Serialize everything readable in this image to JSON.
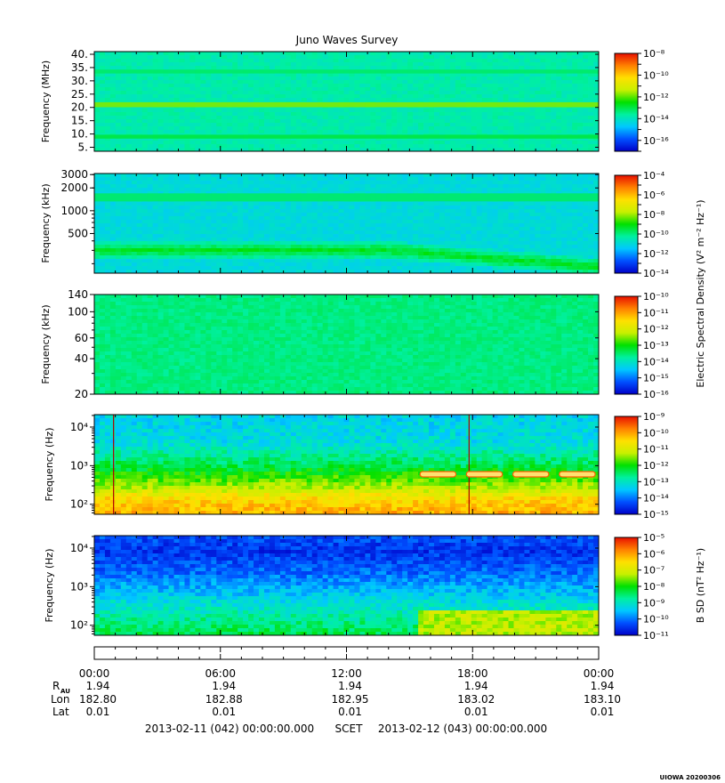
{
  "figure": {
    "title": "Juno Waves Survey",
    "watermark": "UIOWA 20200306"
  },
  "colors": {
    "colormap": [
      "#0000c8",
      "#0050ff",
      "#00c8ff",
      "#00f0a0",
      "#00e000",
      "#c8f000",
      "#ffe000",
      "#ff8000",
      "#e81000"
    ],
    "frame": "#000000"
  },
  "chart_data": [
    {
      "type": "heatmap",
      "name": "panel-1",
      "ylabel": "Frequency (MHz)",
      "yscale": "linear",
      "yticks": [
        "40.",
        "35.",
        "30.",
        "25.",
        "20.",
        "15.",
        "10.",
        "5."
      ],
      "ytick_values": [
        40,
        35,
        30,
        25,
        20,
        15,
        10,
        5
      ],
      "ylim": [
        3.5,
        41
      ],
      "colorbar": {
        "scale": "log",
        "range": [
          -17,
          -8
        ],
        "ticks": [
          -8,
          -10,
          -12,
          -14,
          -16
        ],
        "label": ""
      },
      "base_level": 0.36,
      "bands": [
        {
          "at": 21,
          "level": 0.58,
          "width": 0.6
        },
        {
          "at": 9,
          "level": 0.45,
          "width": 0.4
        },
        {
          "at": 33.5,
          "level": 0.42,
          "width": 0.4
        }
      ]
    },
    {
      "type": "heatmap",
      "name": "panel-2",
      "ylabel": "Frequency (kHz)",
      "yscale": "log",
      "yticks": [
        "3000",
        "2000",
        "1000",
        "500"
      ],
      "ytick_values": [
        3000,
        2000,
        1000,
        500
      ],
      "ylim": [
        150,
        3100
      ],
      "colorbar": {
        "scale": "log",
        "range": [
          -14,
          -4
        ],
        "ticks": [
          -4,
          -6,
          -8,
          -10,
          -12,
          -14
        ],
        "label": "Electric Spectral Density (V² m⁻² Hz⁻¹)"
      },
      "base_level": 0.3,
      "bands": [
        {
          "at": 1500,
          "level": 0.42,
          "width": 0.03
        }
      ],
      "trend": {
        "start_freq": 300,
        "end_freq": 180,
        "level": 0.48
      }
    },
    {
      "type": "heatmap",
      "name": "panel-3",
      "ylabel": "Frequency (kHz)",
      "yscale": "log",
      "yticks": [
        "140",
        "100",
        "60",
        "40",
        "20"
      ],
      "ytick_values": [
        140,
        100,
        60,
        40,
        20
      ],
      "ylim": [
        20,
        140
      ],
      "colorbar": {
        "scale": "log",
        "range": [
          -16,
          -10
        ],
        "ticks": [
          -10,
          -11,
          -12,
          -13,
          -14,
          -15,
          -16
        ],
        "label": ""
      },
      "base_level": 0.4
    },
    {
      "type": "heatmap",
      "name": "panel-4",
      "ylabel": "Frequency (Hz)",
      "yscale": "log",
      "yticks": [
        "10^4",
        "10^3",
        "10^2"
      ],
      "ytick_values": [
        10000,
        1000,
        100
      ],
      "ylim": [
        55,
        21000
      ],
      "colorbar": {
        "scale": "log",
        "range": [
          -15,
          -9
        ],
        "ticks": [
          -9,
          -10,
          -11,
          -12,
          -13,
          -14,
          -15
        ],
        "label": ""
      },
      "profile": [
        [
          55,
          0.82
        ],
        [
          150,
          0.74
        ],
        [
          300,
          0.6
        ],
        [
          1000,
          0.44
        ],
        [
          4000,
          0.3
        ],
        [
          21000,
          0.28
        ]
      ],
      "spikes": [
        "00:55",
        "17:50"
      ],
      "tones": [
        {
          "freq": 600,
          "from": "15:30",
          "to": "23:50"
        }
      ]
    },
    {
      "type": "heatmap",
      "name": "panel-5",
      "ylabel": "Frequency (Hz)",
      "yscale": "log",
      "yticks": [
        "10^4",
        "10^3",
        "10^2"
      ],
      "ytick_values": [
        10000,
        1000,
        100
      ],
      "ylim": [
        55,
        21000
      ],
      "colorbar": {
        "scale": "log",
        "range": [
          -11,
          -5
        ],
        "ticks": [
          -5,
          -6,
          -7,
          -8,
          -9,
          -10,
          -11
        ],
        "label": "B SD (nT² Hz⁻¹)"
      },
      "profile": [
        [
          55,
          0.45
        ],
        [
          150,
          0.38
        ],
        [
          500,
          0.28
        ],
        [
          2000,
          0.16
        ],
        [
          8000,
          0.08
        ],
        [
          21000,
          0.12
        ]
      ],
      "step": {
        "at": "15:30",
        "max_freq": 250,
        "level": 0.62
      }
    }
  ],
  "time_axis": {
    "xlim": [
      "00:00",
      "24:00"
    ],
    "ticks": [
      "00:00",
      "06:00",
      "12:00",
      "18:00",
      "00:00"
    ]
  },
  "ephemeris": {
    "row_labels": {
      "rau": "R",
      "rau_sub": "AU",
      "lon": "Lon",
      "lat": "Lat"
    },
    "rau": [
      "1.94",
      "1.94",
      "1.94",
      "1.94",
      "1.94"
    ],
    "lon": [
      "182.80",
      "182.88",
      "182.95",
      "183.02",
      "183.10"
    ],
    "lat": [
      "0.01",
      "0.01",
      "0.01",
      "0.01",
      "0.01"
    ]
  },
  "date_line": {
    "start": "2013-02-11 (042) 00:00:00.000",
    "system": "SCET",
    "end": "2013-02-12 (043) 00:00:00.000"
  }
}
